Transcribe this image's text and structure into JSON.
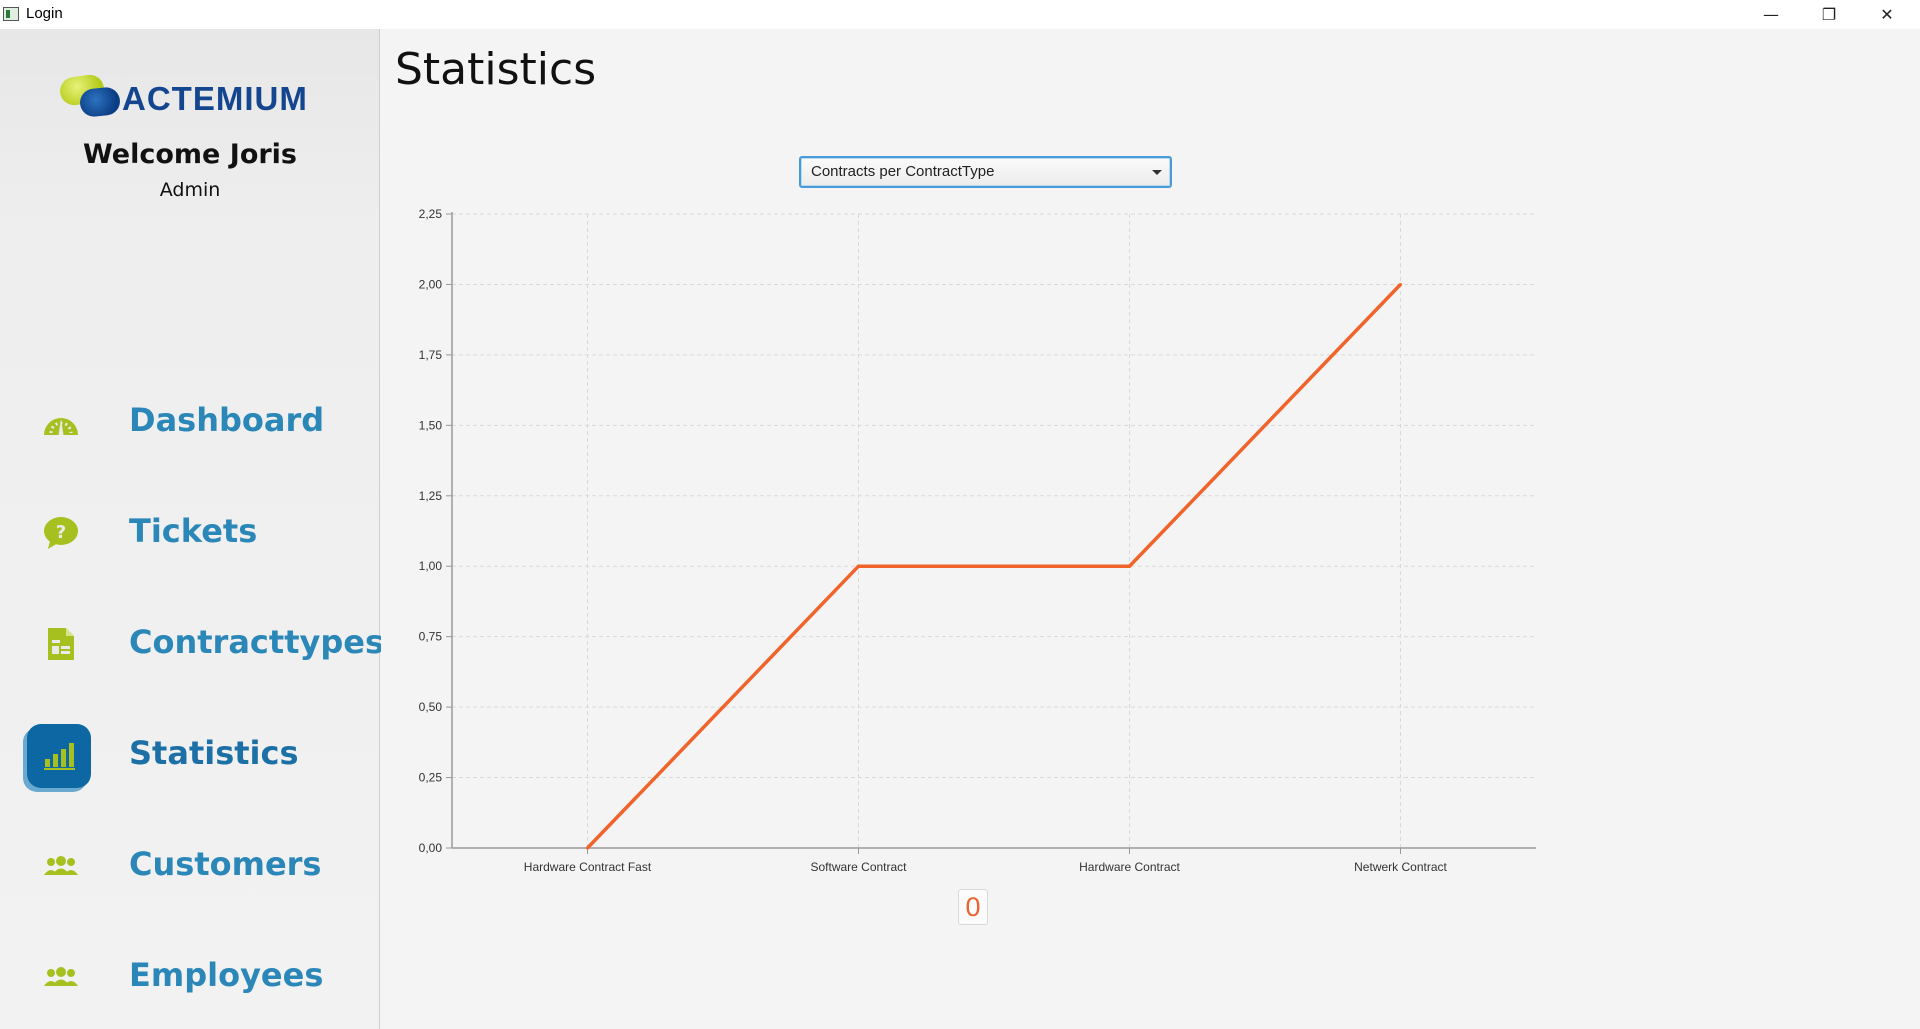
{
  "window": {
    "title": "Login",
    "controls": {
      "minimize": "—",
      "maximize": "❐",
      "close": "✕"
    }
  },
  "sidebar": {
    "logo_text": "ACTEMIUM",
    "welcome": "Welcome Joris",
    "role": "Admin",
    "items": [
      {
        "label": "Dashboard",
        "icon": "gauge-icon"
      },
      {
        "label": "Tickets",
        "icon": "question-bubble-icon"
      },
      {
        "label": "Contracttypes",
        "icon": "document-icon"
      },
      {
        "label": "Statistics",
        "icon": "bar-chart-icon",
        "active": true
      },
      {
        "label": "Customers",
        "icon": "people-icon"
      },
      {
        "label": "Employees",
        "icon": "people-icon"
      }
    ]
  },
  "main": {
    "title": "Statistics",
    "chart_select": {
      "value": "Contracts per ContractType"
    },
    "counter": "0"
  },
  "colors": {
    "accent_green": "#a6c11f",
    "nav_blue": "#2a87b8",
    "active_blue": "#0d67a3",
    "line_orange": "#f0632b"
  },
  "chart_data": {
    "type": "line",
    "categories": [
      "Hardware Contract Fast",
      "Software Contract",
      "Hardware Contract",
      "Netwerk Contract"
    ],
    "series": [
      {
        "values": [
          0,
          1,
          1,
          2
        ]
      }
    ],
    "ylim": [
      0,
      2.25
    ],
    "yticks": [
      "0,00",
      "0,25",
      "0,50",
      "0,75",
      "1,00",
      "1,25",
      "1,50",
      "1,75",
      "2,00",
      "2,25"
    ],
    "grid": true,
    "title": "",
    "xlabel": "",
    "ylabel": ""
  }
}
